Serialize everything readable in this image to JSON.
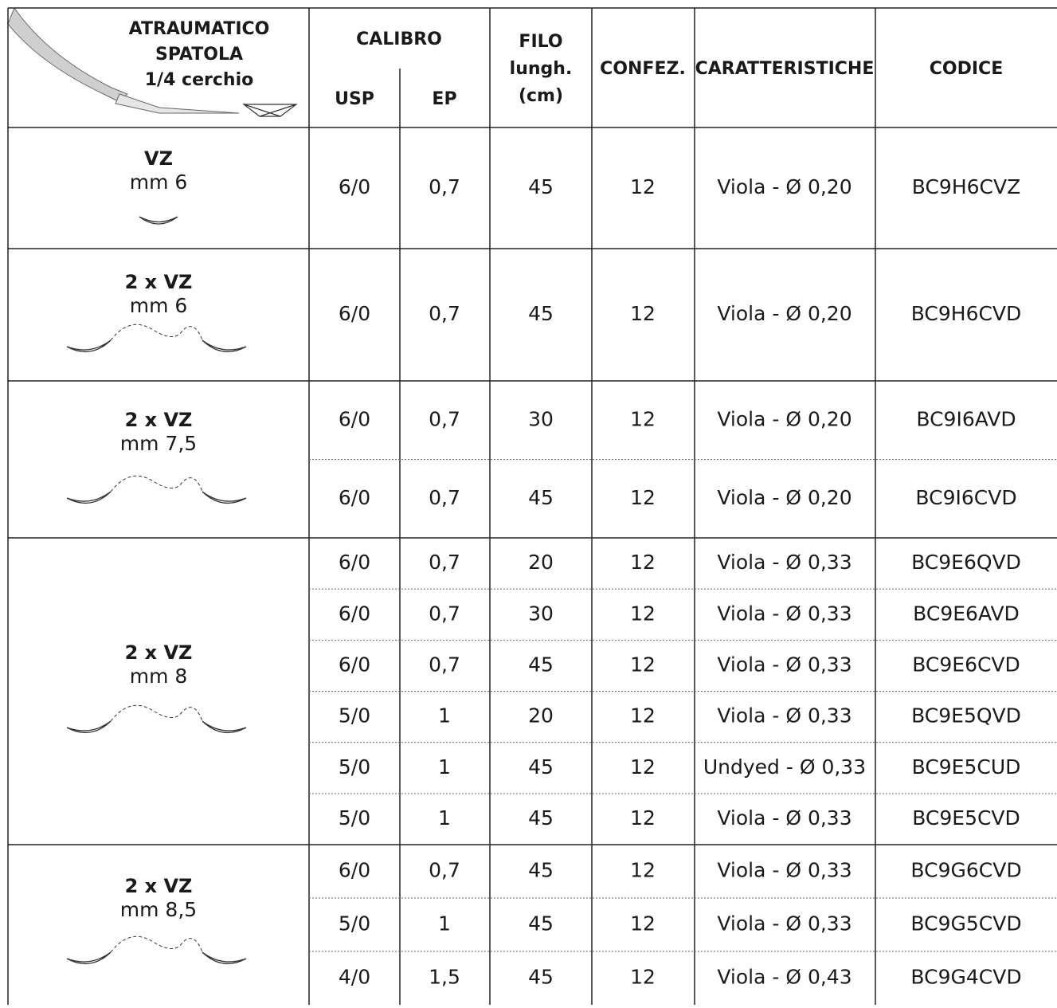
{
  "header": {
    "needle": [
      "ATRAUMATICO",
      "SPATOLA",
      "1/4 cerchio"
    ],
    "calibro": "CALIBRO",
    "usp": "USP",
    "ep": "EP",
    "filo": [
      "FILO",
      "lungh.",
      "(cm)"
    ],
    "confez": "CONFEZ.",
    "caratteristiche": "CARATTERISTICHE",
    "codice": "CODICE"
  },
  "groups": [
    {
      "name": "VZ",
      "size": "mm 6",
      "rows": [
        [
          "6/0",
          "0,7",
          "45",
          "12",
          "Viola - Ø 0,20",
          "BC9H6CVZ"
        ]
      ]
    },
    {
      "name": "2 x VZ",
      "size": "mm 6",
      "rows": [
        [
          "6/0",
          "0,7",
          "45",
          "12",
          "Viola - Ø 0,20",
          "BC9H6CVD"
        ]
      ]
    },
    {
      "name": "2 x VZ",
      "size": "mm 7,5",
      "rows": [
        [
          "6/0",
          "0,7",
          "30",
          "12",
          "Viola - Ø 0,20",
          "BC9I6AVD"
        ],
        [
          "6/0",
          "0,7",
          "45",
          "12",
          "Viola - Ø 0,20",
          "BC9I6CVD"
        ]
      ]
    },
    {
      "name": "2 x VZ",
      "size": "mm 8",
      "rows": [
        [
          "6/0",
          "0,7",
          "20",
          "12",
          "Viola - Ø 0,33",
          "BC9E6QVD"
        ],
        [
          "6/0",
          "0,7",
          "30",
          "12",
          "Viola - Ø 0,33",
          "BC9E6AVD"
        ],
        [
          "6/0",
          "0,7",
          "45",
          "12",
          "Viola - Ø 0,33",
          "BC9E6CVD"
        ],
        [
          "5/0",
          "1",
          "20",
          "12",
          "Viola - Ø 0,33",
          "BC9E5QVD"
        ],
        [
          "5/0",
          "1",
          "45",
          "12",
          "Undyed - Ø 0,33",
          "BC9E5CUD"
        ],
        [
          "5/0",
          "1",
          "45",
          "12",
          "Viola - Ø 0,33",
          "BC9E5CVD"
        ]
      ]
    },
    {
      "name": "2 x VZ",
      "size": "mm 8,5",
      "rows": [
        [
          "6/0",
          "0,7",
          "45",
          "12",
          "Viola - Ø 0,33",
          "BC9G6CVD"
        ],
        [
          "5/0",
          "1",
          "45",
          "12",
          "Viola - Ø 0,33",
          "BC9G5CVD"
        ],
        [
          "4/0",
          "1,5",
          "45",
          "12",
          "Viola - Ø 0,43",
          "BC9G4CVD"
        ]
      ]
    }
  ]
}
